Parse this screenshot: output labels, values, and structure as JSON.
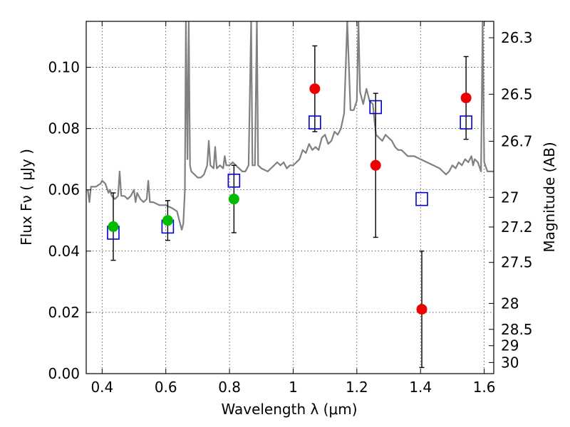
{
  "chart_data": {
    "type": "scatter",
    "xlabel": "Wavelength  λ (μm)",
    "ylabel_left": "Flux  Fν  ( μJy )",
    "ylabel_right": "Magnitude (AB)",
    "xlim": [
      0.35,
      1.63
    ],
    "ylim": [
      0.0,
      0.115
    ],
    "grid": true,
    "x_ticks": [
      {
        "value": 0.4,
        "label": "0.4"
      },
      {
        "value": 0.6,
        "label": "0.6"
      },
      {
        "value": 0.8,
        "label": "0.8"
      },
      {
        "value": 1.0,
        "label": "1"
      },
      {
        "value": 1.2,
        "label": "1.2"
      },
      {
        "value": 1.4,
        "label": "1.4"
      },
      {
        "value": 1.6,
        "label": "1.6"
      }
    ],
    "y_ticks": [
      {
        "value": 0.0,
        "label": "0.00"
      },
      {
        "value": 0.02,
        "label": "0.02"
      },
      {
        "value": 0.04,
        "label": "0.04"
      },
      {
        "value": 0.06,
        "label": "0.06"
      },
      {
        "value": 0.08,
        "label": "0.08"
      },
      {
        "value": 0.1,
        "label": "0.10"
      }
    ],
    "mag_ticks": [
      {
        "value": 26.3,
        "label": "26.3"
      },
      {
        "value": 26.5,
        "label": "26.5"
      },
      {
        "value": 26.7,
        "label": "26.7"
      },
      {
        "value": 27.0,
        "label": "27"
      },
      {
        "value": 27.2,
        "label": "27.2"
      },
      {
        "value": 27.5,
        "label": "27.5"
      },
      {
        "value": 28.0,
        "label": "28"
      },
      {
        "value": 28.5,
        "label": "28.5"
      },
      {
        "value": 29.0,
        "label": "29"
      },
      {
        "value": 30.0,
        "label": "30"
      }
    ],
    "colors": {
      "spectrum": "#808080",
      "green": "#00bb00",
      "red": "#ee0000",
      "model": "#0000cc",
      "error": "#000000"
    },
    "series": [
      {
        "name": "model spectrum",
        "kind": "line",
        "points": [
          [
            0.355,
            0.06
          ],
          [
            0.36,
            0.056
          ],
          [
            0.365,
            0.061
          ],
          [
            0.38,
            0.061
          ],
          [
            0.395,
            0.062
          ],
          [
            0.4,
            0.063
          ],
          [
            0.41,
            0.062
          ],
          [
            0.42,
            0.059
          ],
          [
            0.425,
            0.06
          ],
          [
            0.43,
            0.058
          ],
          [
            0.44,
            0.057
          ],
          [
            0.45,
            0.058
          ],
          [
            0.455,
            0.066
          ],
          [
            0.46,
            0.058
          ],
          [
            0.47,
            0.058
          ],
          [
            0.48,
            0.057
          ],
          [
            0.49,
            0.058
          ],
          [
            0.5,
            0.06
          ],
          [
            0.505,
            0.056
          ],
          [
            0.51,
            0.059
          ],
          [
            0.52,
            0.057
          ],
          [
            0.53,
            0.056
          ],
          [
            0.54,
            0.057
          ],
          [
            0.545,
            0.063
          ],
          [
            0.55,
            0.056
          ],
          [
            0.56,
            0.056
          ],
          [
            0.58,
            0.055
          ],
          [
            0.6,
            0.055
          ],
          [
            0.62,
            0.054
          ],
          [
            0.635,
            0.053
          ],
          [
            0.64,
            0.051
          ],
          [
            0.645,
            0.049
          ],
          [
            0.65,
            0.047
          ],
          [
            0.655,
            0.049
          ],
          [
            0.66,
            0.06
          ],
          [
            0.663,
            0.115
          ],
          [
            0.668,
            0.07
          ],
          [
            0.672,
            0.115
          ],
          [
            0.676,
            0.068
          ],
          [
            0.68,
            0.066
          ],
          [
            0.7,
            0.064
          ],
          [
            0.71,
            0.064
          ],
          [
            0.72,
            0.065
          ],
          [
            0.73,
            0.068
          ],
          [
            0.735,
            0.076
          ],
          [
            0.74,
            0.068
          ],
          [
            0.75,
            0.067
          ],
          [
            0.755,
            0.074
          ],
          [
            0.76,
            0.067
          ],
          [
            0.77,
            0.068
          ],
          [
            0.78,
            0.067
          ],
          [
            0.785,
            0.071
          ],
          [
            0.79,
            0.068
          ],
          [
            0.8,
            0.068
          ],
          [
            0.81,
            0.069
          ],
          [
            0.82,
            0.068
          ],
          [
            0.83,
            0.067
          ],
          [
            0.84,
            0.066
          ],
          [
            0.85,
            0.066
          ],
          [
            0.86,
            0.068
          ],
          [
            0.868,
            0.115
          ],
          [
            0.872,
            0.068
          ],
          [
            0.88,
            0.068
          ],
          [
            0.886,
            0.115
          ],
          [
            0.89,
            0.068
          ],
          [
            0.9,
            0.067
          ],
          [
            0.92,
            0.066
          ],
          [
            0.94,
            0.068
          ],
          [
            0.95,
            0.069
          ],
          [
            0.96,
            0.068
          ],
          [
            0.97,
            0.069
          ],
          [
            0.98,
            0.067
          ],
          [
            0.99,
            0.068
          ],
          [
            1.0,
            0.068
          ],
          [
            1.02,
            0.07
          ],
          [
            1.03,
            0.073
          ],
          [
            1.04,
            0.072
          ],
          [
            1.05,
            0.075
          ],
          [
            1.06,
            0.073
          ],
          [
            1.07,
            0.074
          ],
          [
            1.08,
            0.073
          ],
          [
            1.09,
            0.077
          ],
          [
            1.1,
            0.078
          ],
          [
            1.11,
            0.075
          ],
          [
            1.12,
            0.076
          ],
          [
            1.13,
            0.079
          ],
          [
            1.14,
            0.078
          ],
          [
            1.15,
            0.08
          ],
          [
            1.16,
            0.085
          ],
          [
            1.17,
            0.115
          ],
          [
            1.18,
            0.086
          ],
          [
            1.19,
            0.086
          ],
          [
            1.2,
            0.089
          ],
          [
            1.205,
            0.115
          ],
          [
            1.21,
            0.092
          ],
          [
            1.22,
            0.088
          ],
          [
            1.23,
            0.093
          ],
          [
            1.24,
            0.089
          ],
          [
            1.25,
            0.088
          ],
          [
            1.26,
            0.078
          ],
          [
            1.27,
            0.077
          ],
          [
            1.28,
            0.076
          ],
          [
            1.29,
            0.078
          ],
          [
            1.3,
            0.077
          ],
          [
            1.31,
            0.076
          ],
          [
            1.32,
            0.074
          ],
          [
            1.33,
            0.073
          ],
          [
            1.34,
            0.073
          ],
          [
            1.35,
            0.072
          ],
          [
            1.36,
            0.071
          ],
          [
            1.38,
            0.071
          ],
          [
            1.4,
            0.07
          ],
          [
            1.42,
            0.069
          ],
          [
            1.44,
            0.068
          ],
          [
            1.46,
            0.067
          ],
          [
            1.47,
            0.066
          ],
          [
            1.48,
            0.065
          ],
          [
            1.49,
            0.066
          ],
          [
            1.5,
            0.068
          ],
          [
            1.51,
            0.067
          ],
          [
            1.52,
            0.069
          ],
          [
            1.53,
            0.068
          ],
          [
            1.54,
            0.07
          ],
          [
            1.55,
            0.069
          ],
          [
            1.56,
            0.071
          ],
          [
            1.565,
            0.068
          ],
          [
            1.57,
            0.07
          ],
          [
            1.58,
            0.069
          ],
          [
            1.59,
            0.066
          ],
          [
            1.595,
            0.115
          ],
          [
            1.6,
            0.069
          ],
          [
            1.61,
            0.066
          ],
          [
            1.62,
            0.066
          ],
          [
            1.63,
            0.066
          ]
        ]
      },
      {
        "name": "green detections",
        "kind": "points",
        "marker": "circle",
        "points": [
          {
            "x": 0.435,
            "y": 0.048,
            "yerr": 0.011
          },
          {
            "x": 0.606,
            "y": 0.05,
            "yerr": 0.0065
          },
          {
            "x": 0.814,
            "y": 0.057,
            "yerr": 0.011
          }
        ]
      },
      {
        "name": "red detections",
        "kind": "points",
        "marker": "circle",
        "points": [
          {
            "x": 1.068,
            "y": 0.093,
            "yerr": 0.014
          },
          {
            "x": 1.259,
            "y": 0.068,
            "yerr": 0.0235
          },
          {
            "x": 1.404,
            "y": 0.021,
            "yerr": 0.019
          },
          {
            "x": 1.543,
            "y": 0.09,
            "yerr": 0.0135
          }
        ]
      },
      {
        "name": "model photometry",
        "kind": "points",
        "marker": "open-square",
        "points": [
          {
            "x": 0.435,
            "y": 0.046
          },
          {
            "x": 0.606,
            "y": 0.048
          },
          {
            "x": 0.814,
            "y": 0.063
          },
          {
            "x": 1.068,
            "y": 0.082
          },
          {
            "x": 1.259,
            "y": 0.087
          },
          {
            "x": 1.404,
            "y": 0.057
          },
          {
            "x": 1.543,
            "y": 0.082
          }
        ]
      }
    ]
  }
}
